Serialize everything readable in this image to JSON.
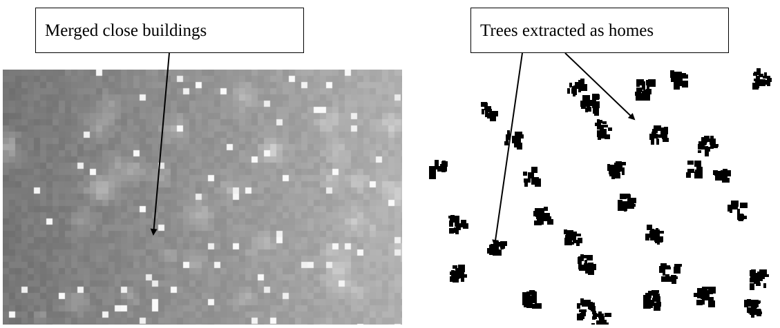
{
  "annotations": {
    "left_label": "Merged close buildings",
    "right_label": "Trees extracted as homes"
  },
  "colors": {
    "background": "#ffffff",
    "ink": "#000000",
    "left_image_dark": "#7a7a7a",
    "left_image_light": "#d8d8d8"
  }
}
